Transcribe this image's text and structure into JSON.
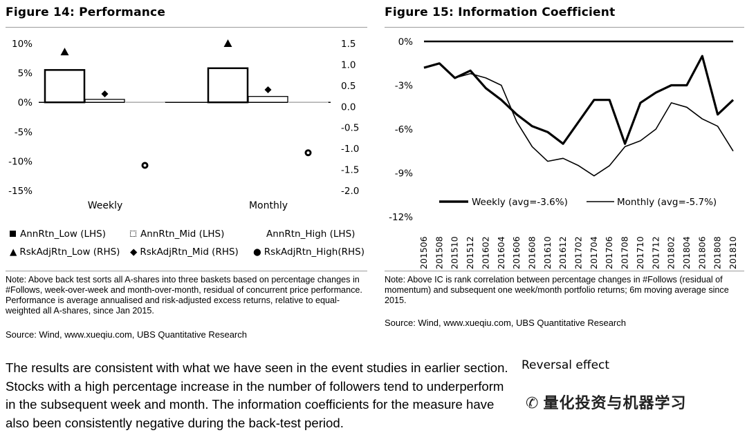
{
  "figure14": {
    "title": "Figure 14: Performance",
    "note": "Note: Above back test sorts all A-shares into three baskets based on percentage changes in #Follows, week-over-week and month-over-month, residual of concurrent price performance. Performance is average annualised and risk-adjusted excess returns, relative to equal-weighted all A-shares, since Jan 2015.",
    "source": "Source: Wind, www.xueqiu.com, UBS Quantitative Research",
    "legend": [
      {
        "label": "AnnRtn_Low (LHS)",
        "icon": "filled-square-icon"
      },
      {
        "label": "AnnRtn_Mid (LHS)",
        "icon": "dotted-square-icon"
      },
      {
        "label": "AnnRtn_High (LHS)",
        "icon": "outline-square-icon"
      },
      {
        "label": "RskAdjRtn_Low (RHS)",
        "icon": "triangle-icon"
      },
      {
        "label": "RskAdjRtn_Mid (RHS)",
        "icon": "diamond-icon"
      },
      {
        "label": "RskAdjRtn_High(RHS)",
        "icon": "circle-icon"
      }
    ]
  },
  "figure15": {
    "title": "Figure 15: Information Coefficient",
    "note": "Note: Above IC is rank correlation between percentage changes in #Follows (residual of momentum) and subsequent one week/month portfolio returns; 6m moving average since 2015.",
    "source": "Source: Wind, www.xueqiu.com, UBS Quantitative Research"
  },
  "body_text": "The results are consistent with what we have seen in the event studies in earlier section. Stocks with a high percentage increase in the number of followers tend to underperform in the subsequent week and month. The information coefficients for the measure have also been consistently negative during the back-test period.",
  "side_heading": "Reversal effect",
  "watermark": "量化投资与机器学习",
  "chart_data": [
    {
      "type": "bar",
      "categories": [
        "Weekly",
        "Monthly"
      ],
      "series": [
        {
          "name": "AnnRtn_Low (LHS)",
          "axis": "left",
          "values": [
            5.5,
            5.8
          ]
        },
        {
          "name": "AnnRtn_Mid (LHS)",
          "axis": "left",
          "values": [
            0.5,
            1.0
          ]
        },
        {
          "name": "AnnRtn_High (LHS)",
          "axis": "left",
          "values": [
            -0.5,
            -0.5
          ]
        },
        {
          "name": "RskAdjRtn_Low (RHS)",
          "axis": "right",
          "values": [
            1.3,
            1.5
          ]
        },
        {
          "name": "RskAdjRtn_Mid (RHS)",
          "axis": "right",
          "values": [
            0.3,
            0.4
          ]
        },
        {
          "name": "RskAdjRtn_High(RHS)",
          "axis": "right",
          "values": [
            -1.4,
            -1.1
          ]
        }
      ],
      "ylim_left": [
        -15,
        10
      ],
      "yticks_left": [
        "10%",
        "5%",
        "0%",
        "-5%",
        "-10%",
        "-15%"
      ],
      "ylim_right": [
        -2.0,
        1.5
      ],
      "yticks_right": [
        "1.5",
        "1.0",
        "0.5",
        "0.0",
        "-0.5",
        "-1.0",
        "-1.5",
        "-2.0"
      ],
      "legend_position": "bottom"
    },
    {
      "type": "line",
      "x": [
        "201506",
        "201508",
        "201510",
        "201512",
        "201602",
        "201604",
        "201606",
        "201608",
        "201610",
        "201612",
        "201702",
        "201704",
        "201706",
        "201708",
        "201710",
        "201712",
        "201802",
        "201804",
        "201806",
        "201808",
        "201810"
      ],
      "ylim": [
        -12,
        0
      ],
      "yticks": [
        "0%",
        "-3%",
        "-6%",
        "-9%",
        "-12%"
      ],
      "series": [
        {
          "name": "Weekly (avg=-3.6%)",
          "values": [
            -1.8,
            -1.5,
            -2.5,
            -2.0,
            -3.2,
            -4.0,
            -5.0,
            -5.8,
            -6.2,
            -7.0,
            -5.5,
            -4.0,
            -4.0,
            -7.0,
            -4.2,
            -3.5,
            -3.0,
            -3.0,
            -1.0,
            -5.0,
            -4.0
          ]
        },
        {
          "name": "Monthly (avg=-5.7%)",
          "values": [
            -1.8,
            -1.5,
            -2.5,
            -2.2,
            -2.5,
            -3.0,
            -5.5,
            -7.2,
            -8.2,
            -8.0,
            -8.5,
            -9.2,
            -8.5,
            -7.2,
            -6.8,
            -6.0,
            -4.2,
            -4.5,
            -5.3,
            -5.8,
            -7.5
          ]
        }
      ],
      "legend_position": "bottom"
    }
  ]
}
